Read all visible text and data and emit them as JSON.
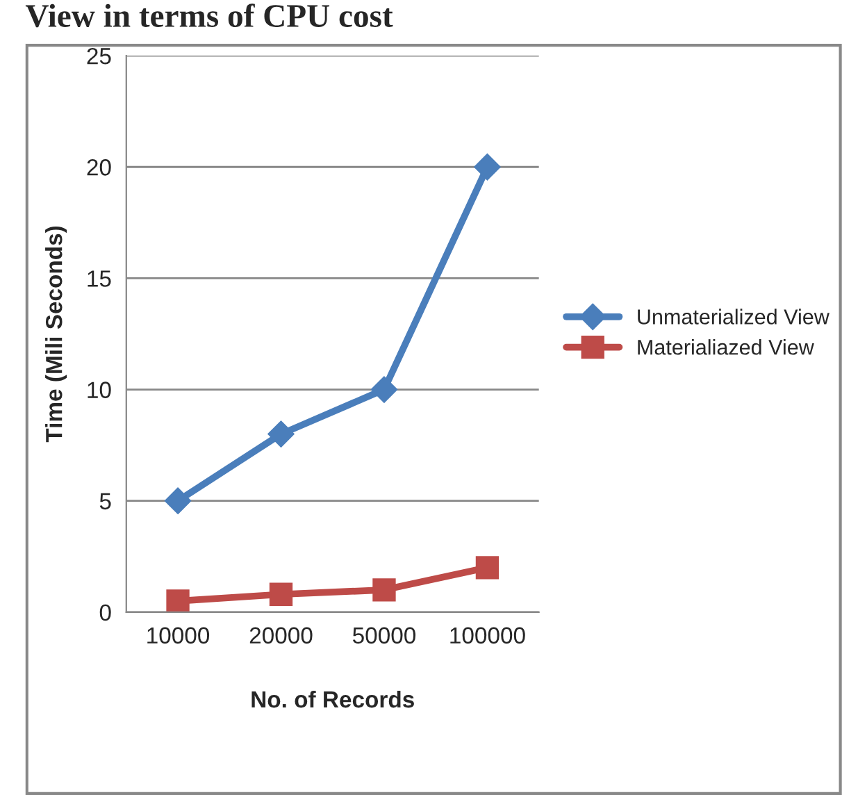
{
  "chart_data": {
    "type": "line",
    "title": "View in terms of CPU cost",
    "xlabel": "No. of Records",
    "ylabel": "Time (Mili Seconds)",
    "categories": [
      "10000",
      "20000",
      "50000",
      "100000"
    ],
    "series": [
      {
        "name": "Unmaterialized View",
        "color": "#4a7ebb",
        "values": [
          5,
          8,
          10,
          20
        ],
        "marker": "diamond"
      },
      {
        "name": "Materialiazed View",
        "color": "#be4b48",
        "values": [
          0.5,
          0.8,
          1,
          2
        ],
        "marker": "square"
      }
    ],
    "ylim": [
      0,
      25
    ],
    "yticks": [
      0,
      5,
      10,
      15,
      20,
      25
    ],
    "grid": "y",
    "legend": "right",
    "line_style": "solid"
  }
}
